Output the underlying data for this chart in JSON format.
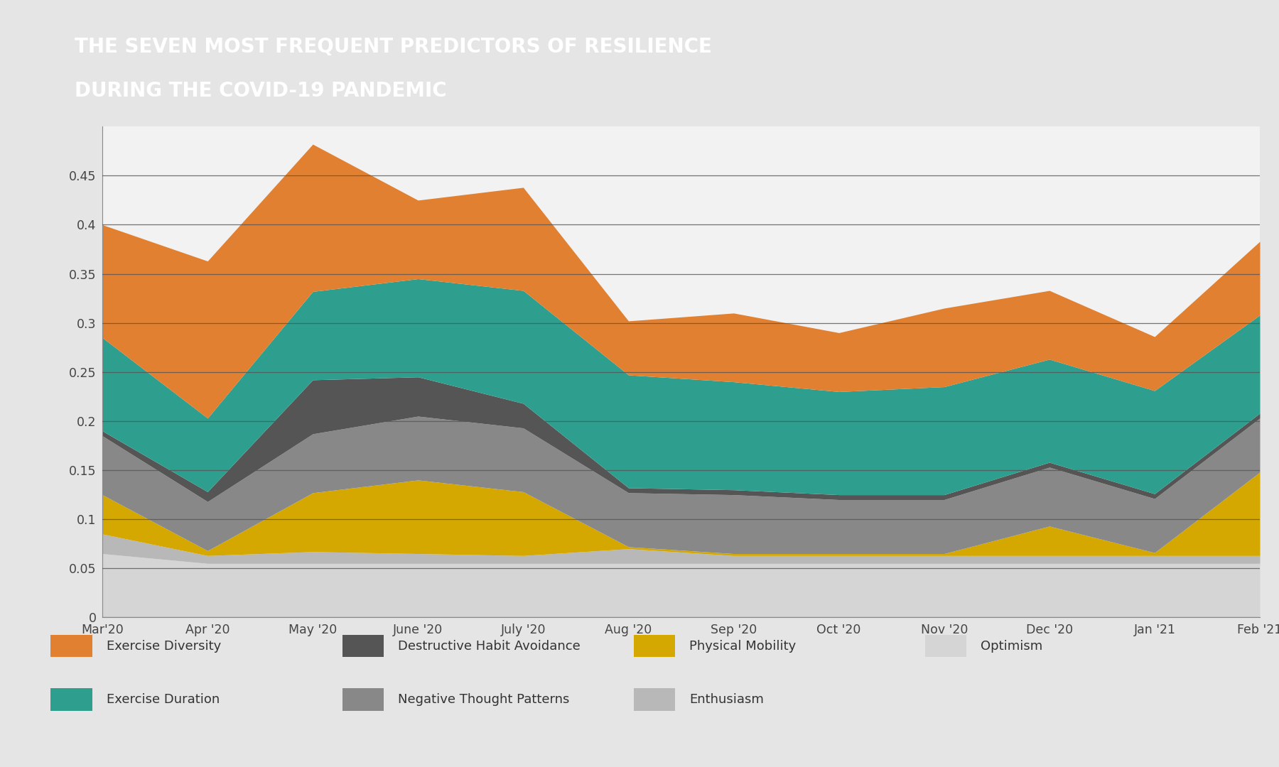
{
  "title_line1": "THE SEVEN MOST FREQUENT PREDICTORS OF RESILIENCE",
  "title_line2": "DURING THE COVID-19 PANDEMIC",
  "title_bg_color": "#6b6b6b",
  "title_text_color": "#ffffff",
  "chart_bg_color": "#f2f2f2",
  "outer_bg_color": "#e5e5e5",
  "x_labels": [
    "Mar'20",
    "Apr '20",
    "May '20",
    "June '20",
    "July '20",
    "Aug '20",
    "Sep '20",
    "Oct '20",
    "Nov '20",
    "Dec '20",
    "Jan '21",
    "Feb '21"
  ],
  "ylim": [
    0,
    0.5
  ],
  "yticks": [
    0,
    0.05,
    0.1,
    0.15,
    0.2,
    0.25,
    0.3,
    0.35,
    0.4,
    0.45
  ],
  "series": {
    "Exercise Diversity": {
      "color": "#E08030",
      "values": [
        0.115,
        0.16,
        0.15,
        0.08,
        0.105,
        0.055,
        0.07,
        0.06,
        0.08,
        0.07,
        0.055,
        0.075
      ]
    },
    "Exercise Duration": {
      "color": "#2E9E8E",
      "values": [
        0.095,
        0.075,
        0.09,
        0.1,
        0.115,
        0.115,
        0.11,
        0.105,
        0.11,
        0.105,
        0.105,
        0.1
      ]
    },
    "Destructive Habit Avoidance": {
      "color": "#555555",
      "values": [
        0.005,
        0.01,
        0.055,
        0.04,
        0.025,
        0.005,
        0.005,
        0.005,
        0.005,
        0.005,
        0.005,
        0.005
      ]
    },
    "Negative Thought Patterns": {
      "color": "#888888",
      "values": [
        0.06,
        0.05,
        0.06,
        0.065,
        0.065,
        0.055,
        0.06,
        0.055,
        0.055,
        0.06,
        0.055,
        0.055
      ]
    },
    "Physical Mobility": {
      "color": "#D4A800",
      "values": [
        0.04,
        0.005,
        0.06,
        0.075,
        0.065,
        0.002,
        0.002,
        0.002,
        0.002,
        0.03,
        0.003,
        0.085
      ]
    },
    "Enthusiasm": {
      "color": "#b8b8b8",
      "values": [
        0.02,
        0.008,
        0.012,
        0.01,
        0.008,
        0.015,
        0.008,
        0.008,
        0.008,
        0.008,
        0.008,
        0.008
      ]
    },
    "Optimism": {
      "color": "#d5d5d5",
      "values": [
        0.065,
        0.055,
        0.055,
        0.055,
        0.055,
        0.055,
        0.055,
        0.055,
        0.055,
        0.055,
        0.055,
        0.055
      ]
    }
  },
  "legend_order": [
    "Exercise Diversity",
    "Destructive Habit Avoidance",
    "Physical Mobility",
    "Optimism",
    "Exercise Duration",
    "Negative Thought Patterns",
    "Enthusiasm"
  ],
  "stack_order": [
    "Optimism",
    "Enthusiasm",
    "Physical Mobility",
    "Negative Thought Patterns",
    "Destructive Habit Avoidance",
    "Exercise Duration",
    "Exercise Diversity"
  ]
}
